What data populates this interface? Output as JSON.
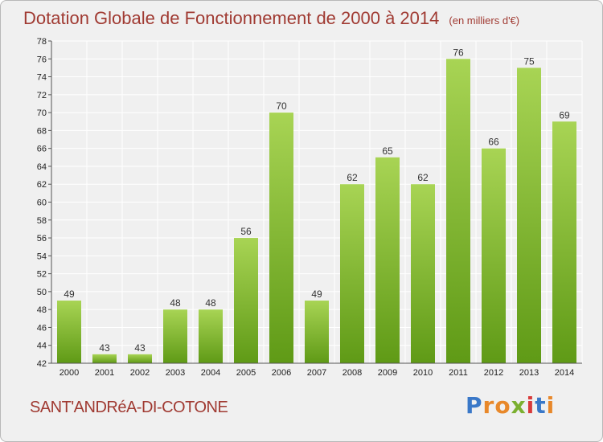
{
  "title": "Dotation Globale de Fonctionnement de 2000 à 2014",
  "unit_note": "(en milliers d'€)",
  "commune": "SANT'ANDRéA-DI-COTONE",
  "brand": {
    "letters": [
      "P",
      "r",
      "o",
      "x",
      "i",
      "t",
      "i"
    ],
    "colors": [
      "#3a78c8",
      "#e8882a",
      "#e8882a",
      "#7bb030",
      "#d83a3a",
      "#3a78c8",
      "#e8882a"
    ]
  },
  "colors": {
    "title": "#a03a32",
    "bar_top": "#a8d454",
    "bar_bottom": "#5f9a16",
    "grid": "#ffffff",
    "plot_bg": "#f0f0f0"
  },
  "chart_data": {
    "type": "bar",
    "categories": [
      "2000",
      "2001",
      "2002",
      "2003",
      "2004",
      "2005",
      "2006",
      "2007",
      "2008",
      "2009",
      "2010",
      "2011",
      "2012",
      "2013",
      "2014"
    ],
    "values": [
      49,
      43,
      43,
      48,
      48,
      56,
      70,
      49,
      62,
      65,
      62,
      76,
      66,
      75,
      69
    ],
    "ylim": [
      42,
      78
    ],
    "yticks": [
      42,
      44,
      46,
      48,
      50,
      52,
      54,
      56,
      58,
      60,
      62,
      64,
      66,
      68,
      70,
      72,
      74,
      76,
      78
    ],
    "grid": true,
    "xlabel": "",
    "ylabel": ""
  }
}
